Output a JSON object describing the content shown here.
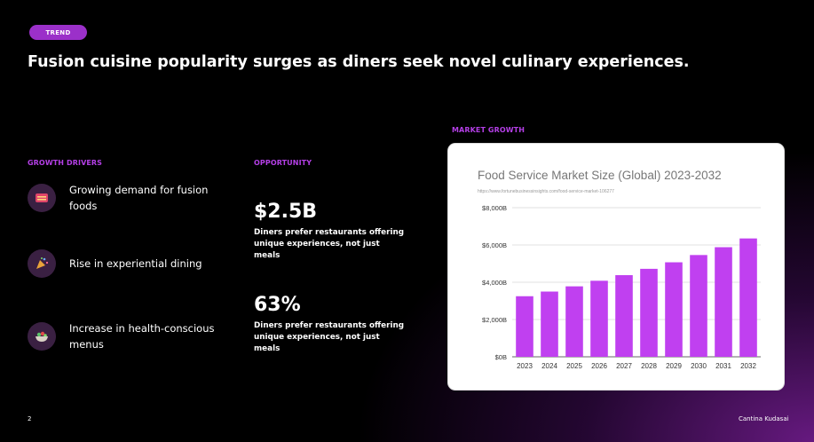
{
  "tag": "TREND",
  "headline": "Fusion cuisine popularity surges as diners seek novel culinary experiences.",
  "growth_drivers": {
    "label": "GROWTH DRIVERS",
    "items": [
      {
        "text": "Growing demand for fusion foods",
        "icon": "food-icon"
      },
      {
        "text": "Rise in experiential dining",
        "icon": "celebration-icon"
      },
      {
        "text": "Increase in health-conscious menus",
        "icon": "salad-bowl-icon"
      }
    ]
  },
  "opportunity": {
    "label": "OPPORTUNITY",
    "stats": [
      {
        "value": "$2.5B",
        "desc": "Diners prefer restaurants offering unique experiences, not just meals"
      },
      {
        "value": "63%",
        "desc": "Diners prefer restaurants offering unique experiences, not just meals"
      }
    ]
  },
  "market_growth": {
    "label": "MARKET GROWTH",
    "title": "Food Service Market Size (Global) 2023-2032",
    "source": "https://www.fortunebusinessinsights.com/food-service-market-106277"
  },
  "chart_data": {
    "type": "bar",
    "title": "Food Service Market Size (Global) 2023-2032",
    "categories": [
      "2023",
      "2024",
      "2025",
      "2026",
      "2027",
      "2028",
      "2029",
      "2030",
      "2031",
      "2032"
    ],
    "values": [
      3250,
      3500,
      3780,
      4080,
      4380,
      4720,
      5070,
      5460,
      5880,
      6350
    ],
    "ylim": [
      0,
      8000
    ],
    "yticks": [
      0,
      2000,
      4000,
      6000,
      8000
    ],
    "ytick_labels": [
      "$0B",
      "$2,000B",
      "$4,000B",
      "$6,000B",
      "$8,000B"
    ],
    "grid": true,
    "bar_color": "#c040f0"
  },
  "footer": {
    "page_number": "2",
    "author": "Cantina Kudasai"
  },
  "colors": {
    "accent": "#b43fe6",
    "pill": "#9b30c9",
    "background": "#000000"
  }
}
